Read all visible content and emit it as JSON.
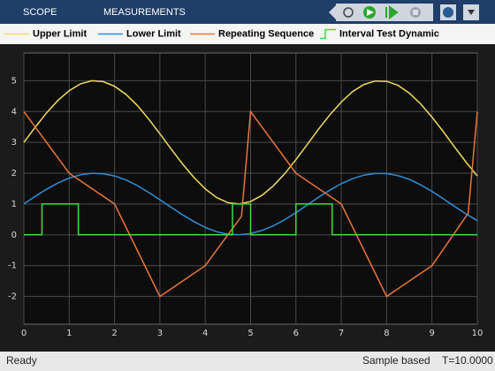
{
  "toolbar": {
    "tabs": [
      "SCOPE",
      "MEASUREMENTS"
    ]
  },
  "chart_data": {
    "type": "line",
    "xlim": [
      0,
      10
    ],
    "ylim": [
      -2.9,
      5.9
    ],
    "xticks": [
      0,
      1,
      2,
      3,
      4,
      5,
      6,
      7,
      8,
      9,
      10
    ],
    "yticks": [
      -2,
      -1,
      0,
      1,
      2,
      3,
      4,
      5
    ],
    "grid": true,
    "legend": "top",
    "series": [
      {
        "name": "Upper Limit",
        "color": "#f2dc5d",
        "x": [
          0,
          0.25,
          0.5,
          0.75,
          1,
          1.25,
          1.5,
          1.75,
          2,
          2.25,
          2.5,
          2.75,
          3,
          3.25,
          3.5,
          3.75,
          4,
          4.25,
          4.5,
          4.75,
          5,
          5.25,
          5.5,
          5.75,
          6,
          6.25,
          6.5,
          6.75,
          7,
          7.25,
          7.5,
          7.75,
          8,
          8.25,
          8.5,
          8.75,
          9,
          9.25,
          9.5,
          9.75,
          10
        ],
        "values": [
          3,
          3.49,
          3.96,
          4.36,
          4.68,
          4.9,
          5,
          4.97,
          4.82,
          4.56,
          4.2,
          3.76,
          3.28,
          2.78,
          2.3,
          1.86,
          1.49,
          1.21,
          1.04,
          1,
          1.08,
          1.28,
          1.59,
          1.98,
          2.44,
          2.93,
          3.43,
          3.9,
          4.31,
          4.65,
          4.88,
          4.99,
          4.98,
          4.85,
          4.6,
          4.25,
          3.82,
          3.35,
          2.85,
          2.36,
          1.91
        ]
      },
      {
        "name": "Lower Limit",
        "color": "#2f8fd8",
        "x": [
          0,
          0.25,
          0.5,
          0.75,
          1,
          1.25,
          1.5,
          1.75,
          2,
          2.25,
          2.5,
          2.75,
          3,
          3.25,
          3.5,
          3.75,
          4,
          4.25,
          4.5,
          4.75,
          5,
          5.25,
          5.5,
          5.75,
          6,
          6.25,
          6.5,
          6.75,
          7,
          7.25,
          7.5,
          7.75,
          8,
          8.25,
          8.5,
          8.75,
          9,
          9.25,
          9.5,
          9.75,
          10
        ],
        "values": [
          1,
          1.25,
          1.48,
          1.68,
          1.84,
          1.95,
          2,
          1.98,
          1.91,
          1.78,
          1.6,
          1.38,
          1.14,
          0.89,
          0.65,
          0.43,
          0.24,
          0.1,
          0.02,
          0,
          0.04,
          0.14,
          0.29,
          0.49,
          0.72,
          0.97,
          1.22,
          1.45,
          1.66,
          1.82,
          1.94,
          1.99,
          1.99,
          1.92,
          1.8,
          1.62,
          1.41,
          1.17,
          0.92,
          0.68,
          0.46
        ]
      },
      {
        "name": "Repeating Sequence",
        "color": "#e8763a",
        "x": [
          0,
          1,
          2,
          3,
          4,
          4.8,
          5,
          6,
          7,
          8,
          9,
          9.8,
          10
        ],
        "values": [
          4,
          2,
          1,
          -2,
          -1,
          0.6,
          4,
          2,
          1,
          -2,
          -1,
          0.7,
          4
        ]
      },
      {
        "name": "Interval Test Dynamic",
        "color": "#3fdc3f",
        "x": [
          0,
          0.4,
          0.4,
          1.2,
          1.2,
          4.6,
          4.6,
          5,
          5,
          6,
          6,
          6.8,
          6.8,
          10
        ],
        "values": [
          0,
          0,
          1,
          1,
          0,
          0,
          1,
          1,
          0,
          0,
          1,
          1,
          0,
          0
        ]
      }
    ]
  },
  "status": {
    "state": "Ready",
    "mode": "Sample based",
    "time": "T=10.0000"
  }
}
